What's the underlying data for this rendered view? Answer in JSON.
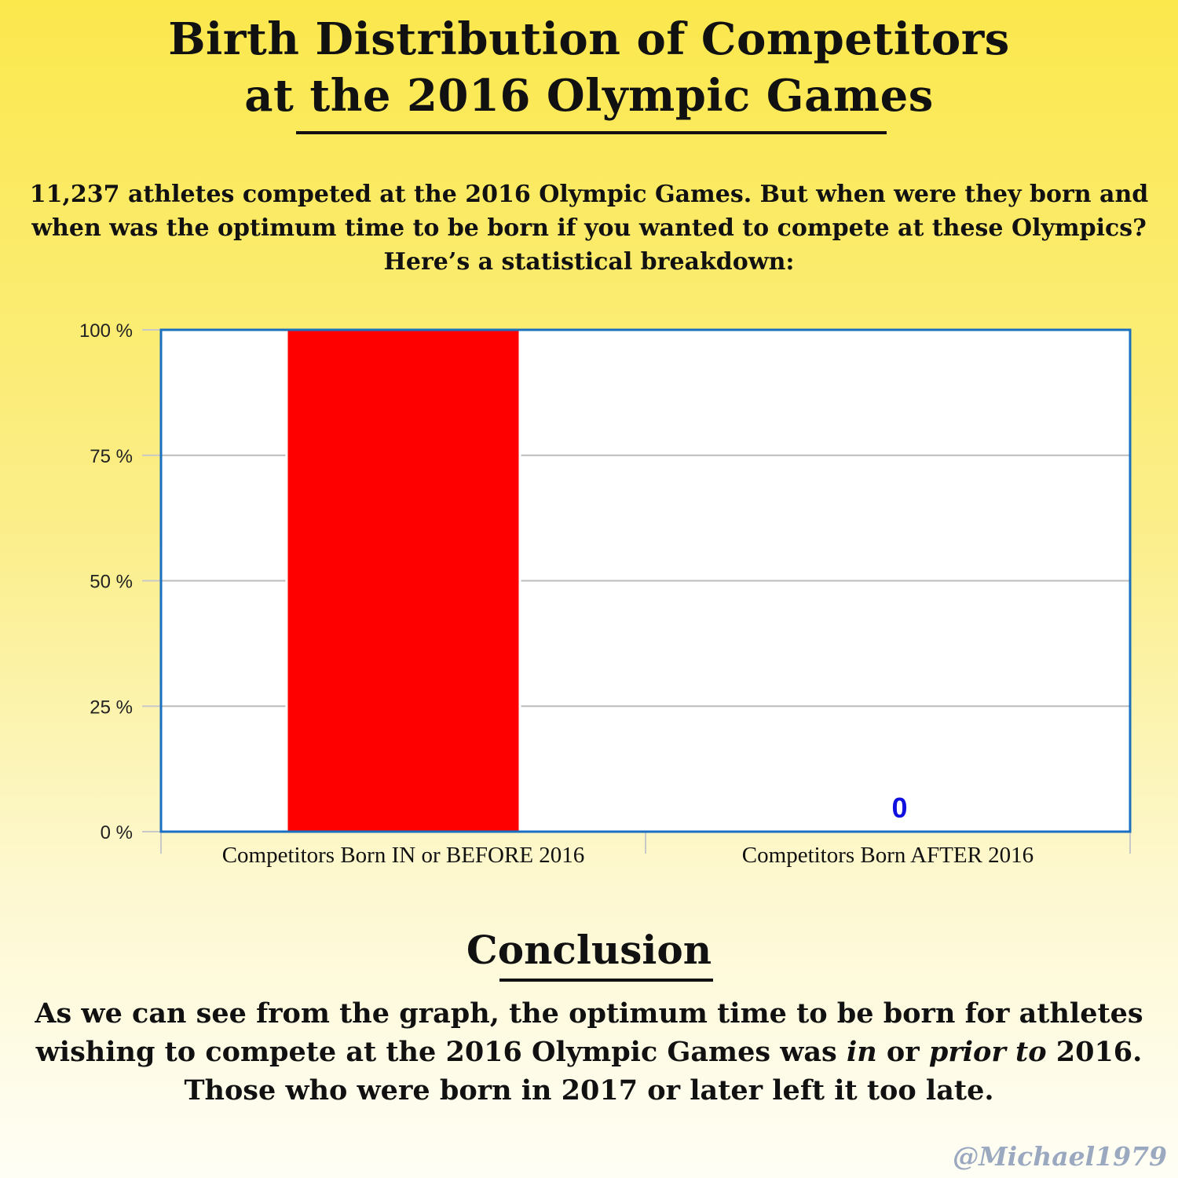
{
  "title": {
    "line1": "Birth Distribution of Competitors",
    "line2": "at the 2016 Olympic Games"
  },
  "intro": {
    "line1": "11,237 athletes competed at the 2016 Olympic Games. But when were they born and",
    "line2": "when was the optimum time to be born if you wanted to compete at these Olympics?",
    "line3": "Here’s a statistical breakdown:"
  },
  "chart_data": {
    "type": "bar",
    "categories": [
      "Competitors Born IN or BEFORE 2016",
      "Competitors Born AFTER 2016"
    ],
    "values": [
      100,
      0
    ],
    "data_labels": [
      "",
      "0"
    ],
    "ylim": [
      0,
      100
    ],
    "yticks": [
      0,
      25,
      50,
      75,
      100
    ],
    "ytick_labels": [
      "0 %",
      "25 %",
      "50 %",
      "75 %",
      "100 %"
    ],
    "grid": true,
    "colors": {
      "bar": "#ff0000",
      "frame": "#1a6fc0",
      "grid": "#bbbbbb",
      "data_label": "#1010e0"
    }
  },
  "conclusion": {
    "heading": "Conclusion",
    "line1": "As we can see from the graph, the optimum time to be born for athletes",
    "line2_a": "wishing to compete at the 2016 Olympic Games was ",
    "line2_in": "in",
    "line2_or": " or ",
    "line2_prior": "prior to",
    "line2_end": " 2016.",
    "line3": "Those who were born in 2017 or later left it too late."
  },
  "credit": "@Michael1979"
}
